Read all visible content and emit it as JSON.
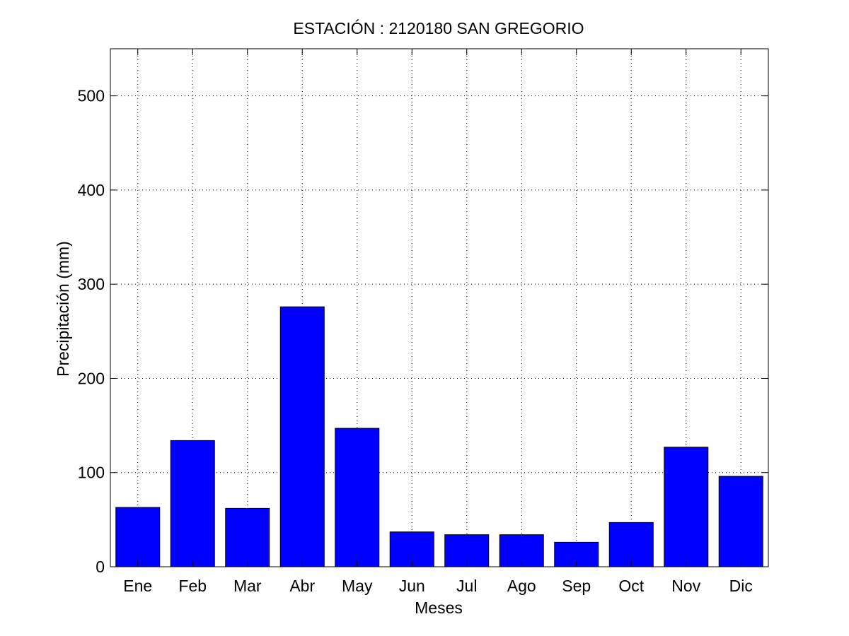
{
  "chart_data": {
    "type": "bar",
    "title": "ESTACIÓN :  2120180  SAN GREGORIO",
    "xlabel": "Meses",
    "ylabel": "Precipitación (mm)",
    "categories": [
      "Ene",
      "Feb",
      "Mar",
      "Abr",
      "May",
      "Jun",
      "Jul",
      "Ago",
      "Sep",
      "Oct",
      "Nov",
      "Dic"
    ],
    "values": [
      63,
      134,
      62,
      276,
      147,
      37,
      34,
      34,
      26,
      47,
      127,
      96
    ],
    "ylim": [
      0,
      550
    ],
    "yticks": [
      0,
      100,
      200,
      300,
      400,
      500
    ],
    "ytick_labels": [
      "0",
      "100",
      "200",
      "300",
      "400",
      "500"
    ],
    "grid": true,
    "bar_color": "#0000ff",
    "bar_edge_color": "#000000"
  }
}
